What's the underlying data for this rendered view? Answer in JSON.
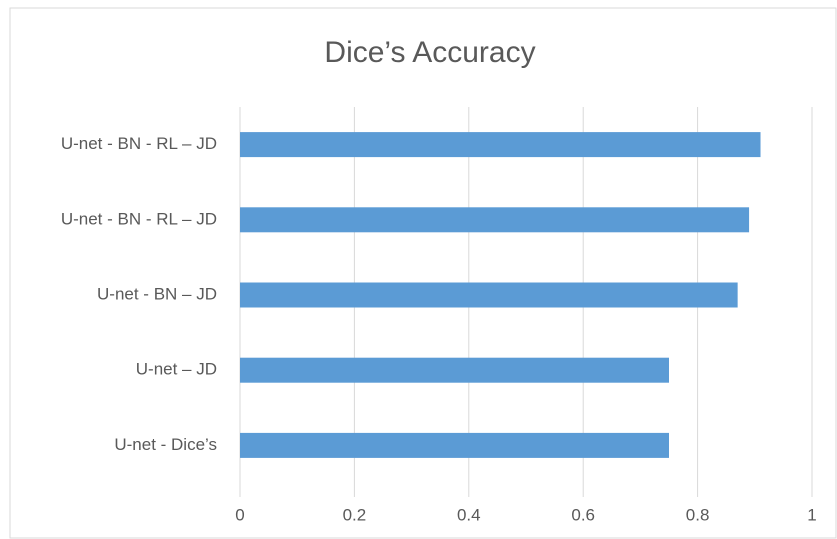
{
  "chart_data": {
    "type": "bar",
    "orientation": "horizontal",
    "title": "Dice’s Accuracy",
    "categories": [
      "U-net - BN - RL – JD",
      "U-net - BN - RL – JD",
      "U-net - BN – JD",
      "U-net – JD",
      "U-net - Dice’s"
    ],
    "values": [
      0.91,
      0.89,
      0.87,
      0.75,
      0.75
    ],
    "color": "#5b9bd5",
    "xlim": [
      0,
      1
    ],
    "xticks": [
      0,
      0.2,
      0.4,
      0.6,
      0.8,
      1
    ],
    "grid": true
  }
}
